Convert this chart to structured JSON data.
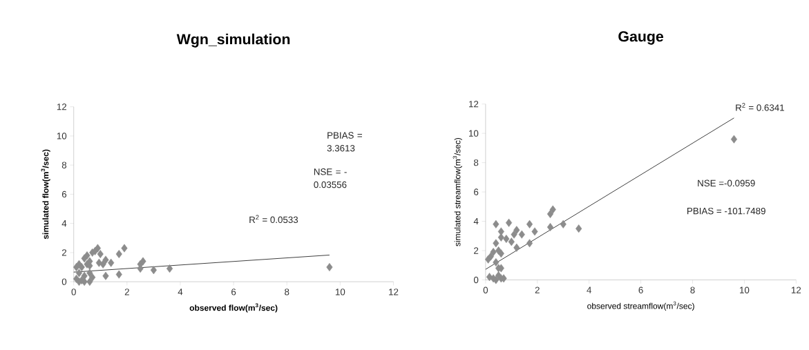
{
  "chart_data": [
    {
      "type": "scatter",
      "title": "Wgn_simulation",
      "xlabel": "observed flow(m$^{3}$/sec)",
      "ylabel": "simulated flow(m$^{3}$/sec)",
      "xlim": [
        0,
        12
      ],
      "ylim": [
        0,
        12
      ],
      "xticks": [
        0,
        2,
        4,
        6,
        8,
        10,
        12
      ],
      "yticks": [
        0,
        2,
        4,
        6,
        8,
        10,
        12
      ],
      "annotations": [
        "R$^{2}$ = 0.0533",
        "PBIAS = 3.3613",
        "NSE = -0.03556"
      ],
      "series": [
        {
          "marker": "diamond",
          "color": "#8c8c8c",
          "x": [
            0.1,
            0.2,
            0.2,
            0.3,
            0.4,
            0.6,
            0.5,
            0.4,
            0.5,
            0.6,
            0.7,
            0.8,
            0.9,
            1.0,
            0.95,
            1.1,
            1.2,
            1.4,
            1.2,
            1.7,
            1.7,
            1.9,
            2.5,
            2.5,
            2.6,
            3.0,
            3.6,
            9.6,
            0.1,
            0.2,
            0.4,
            0.6,
            0.7,
            0.3,
            0.6
          ],
          "values": [
            1.0,
            1.2,
            0.0,
            0.1,
            0.0,
            0.0,
            1.2,
            1.6,
            1.8,
            1.1,
            2.0,
            2.1,
            2.3,
            1.9,
            1.3,
            1.2,
            1.5,
            1.3,
            0.4,
            0.5,
            1.9,
            2.3,
            0.9,
            1.2,
            1.4,
            0.8,
            0.9,
            1.0,
            0.2,
            0.6,
            0.4,
            0.6,
            0.3,
            1.0,
            1.4
          ]
        },
        {
          "type": "line",
          "marker": "none",
          "color": "#303030",
          "x": [
            0,
            9.6
          ],
          "values": [
            0.66,
            1.83
          ]
        }
      ]
    },
    {
      "type": "scatter",
      "title": "Gauge",
      "xlabel": "observed streamflow(m$^{3}$/sec)",
      "ylabel": "simulated streamflow(m$^{3}$/sec)",
      "xlim": [
        0,
        12
      ],
      "ylim": [
        0,
        12
      ],
      "xticks": [
        0,
        2,
        4,
        6,
        8,
        10,
        12
      ],
      "yticks": [
        0,
        2,
        4,
        6,
        8,
        10,
        12
      ],
      "annotations": [
        "R$^{2}$ = 0.6341",
        "NSE =-0.0959",
        "PBIAS = -101.7489"
      ],
      "series": [
        {
          "marker": "diamond",
          "color": "#8c8c8c",
          "x": [
            0.1,
            0.15,
            0.2,
            0.3,
            0.4,
            0.5,
            0.6,
            0.7,
            0.3,
            0.4,
            0.5,
            0.6,
            0.5,
            0.6,
            0.4,
            0.4,
            0.6,
            0.6,
            0.8,
            0.9,
            1.0,
            1.1,
            1.2,
            1.2,
            1.4,
            1.7,
            1.7,
            1.9,
            2.5,
            2.5,
            2.6,
            3.0,
            3.6,
            9.6
          ],
          "values": [
            1.4,
            0.2,
            1.6,
            0.1,
            0.0,
            0.3,
            0.1,
            0.1,
            1.9,
            2.5,
            2.0,
            1.8,
            0.8,
            0.8,
            1.2,
            3.8,
            3.3,
            2.9,
            2.8,
            3.9,
            2.6,
            3.1,
            3.4,
            2.2,
            3.1,
            2.5,
            3.8,
            3.3,
            3.6,
            4.5,
            4.8,
            3.8,
            3.5,
            9.6
          ]
        },
        {
          "type": "line",
          "marker": "none",
          "color": "#303030",
          "x": [
            0,
            9.6
          ],
          "values": [
            0.72,
            11.05
          ]
        }
      ]
    }
  ]
}
